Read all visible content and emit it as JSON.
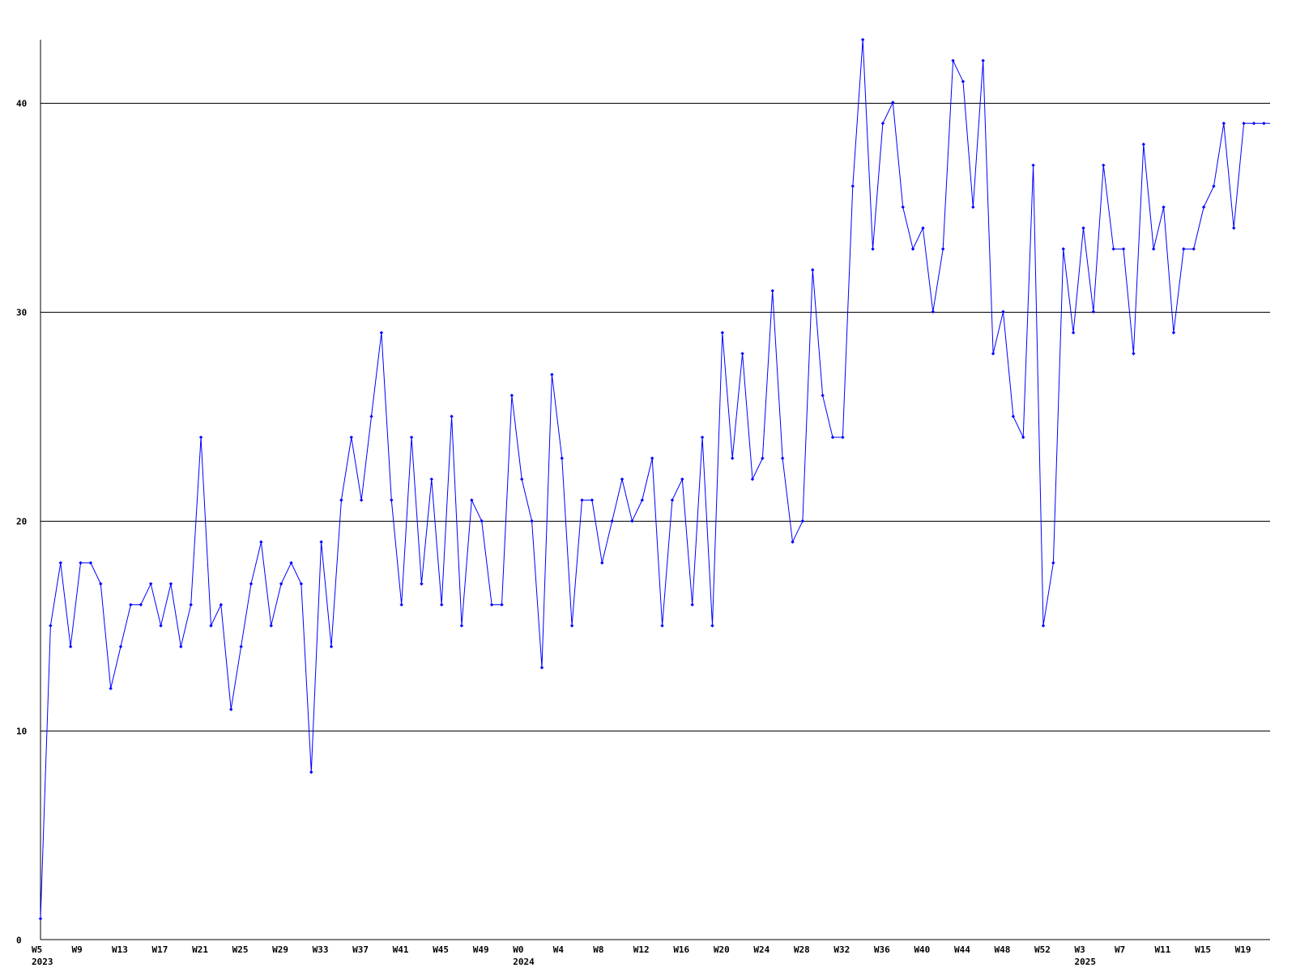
{
  "chart_data": {
    "type": "line",
    "title": "",
    "xlabel": "",
    "ylabel": "",
    "ylim": [
      0,
      43
    ],
    "y_ticks": [
      0,
      10,
      20,
      30,
      40
    ],
    "grid": "horizontal lines at 10, 20, 30, 40",
    "legend": "none",
    "x_ticks": [
      {
        "label": "W5",
        "year": "2023",
        "index": 0
      },
      {
        "label": "W9",
        "index": 4
      },
      {
        "label": "W13",
        "index": 8
      },
      {
        "label": "W17",
        "index": 12
      },
      {
        "label": "W21",
        "index": 16
      },
      {
        "label": "W25",
        "index": 20
      },
      {
        "label": "W29",
        "index": 24
      },
      {
        "label": "W33",
        "index": 28
      },
      {
        "label": "W37",
        "index": 32
      },
      {
        "label": "W41",
        "index": 36
      },
      {
        "label": "W45",
        "index": 40
      },
      {
        "label": "W49",
        "index": 44
      },
      {
        "label": "W0",
        "year": "2024",
        "index": 48
      },
      {
        "label": "W4",
        "index": 52
      },
      {
        "label": "W8",
        "index": 56
      },
      {
        "label": "W12",
        "index": 60
      },
      {
        "label": "W16",
        "index": 64
      },
      {
        "label": "W20",
        "index": 68
      },
      {
        "label": "W24",
        "index": 72
      },
      {
        "label": "W28",
        "index": 76
      },
      {
        "label": "W32",
        "index": 80
      },
      {
        "label": "W36",
        "index": 84
      },
      {
        "label": "W40",
        "index": 88
      },
      {
        "label": "W44",
        "index": 92
      },
      {
        "label": "W48",
        "index": 96
      },
      {
        "label": "W52",
        "index": 100
      },
      {
        "label": "W3",
        "year": "2025",
        "index": 104
      },
      {
        "label": "W7",
        "index": 108
      },
      {
        "label": "W11",
        "index": 112
      },
      {
        "label": "W15",
        "index": 116
      },
      {
        "label": "W19",
        "index": 120
      }
    ],
    "series": [
      {
        "color": "#0000ff",
        "marker": "diamond",
        "values": [
          1,
          15,
          18,
          14,
          18,
          18,
          17,
          12,
          14,
          16,
          16,
          17,
          15,
          17,
          14,
          16,
          24,
          15,
          16,
          11,
          14,
          17,
          19,
          15,
          17,
          18,
          17,
          8,
          19,
          14,
          21,
          24,
          21,
          25,
          29,
          21,
          16,
          24,
          17,
          22,
          16,
          25,
          15,
          21,
          20,
          16,
          16,
          26,
          22,
          20,
          13,
          27,
          23,
          15,
          21,
          21,
          18,
          20,
          22,
          20,
          21,
          23,
          15,
          21,
          22,
          16,
          24,
          15,
          29,
          23,
          28,
          22,
          23,
          31,
          23,
          19,
          20,
          32,
          26,
          24,
          24,
          36,
          43,
          33,
          39,
          40,
          35,
          33,
          34,
          30,
          33,
          42,
          41,
          35,
          42,
          28,
          30,
          25,
          24,
          37,
          15,
          18,
          33,
          29,
          34,
          30,
          37,
          33,
          33,
          28,
          38,
          33,
          35,
          29,
          33,
          33,
          35,
          36,
          39,
          34,
          39,
          39,
          39
        ]
      }
    ],
    "colors": {
      "line": "#0000ff",
      "axis": "#000000",
      "grid": "#000000",
      "background": "#ffffff"
    }
  }
}
